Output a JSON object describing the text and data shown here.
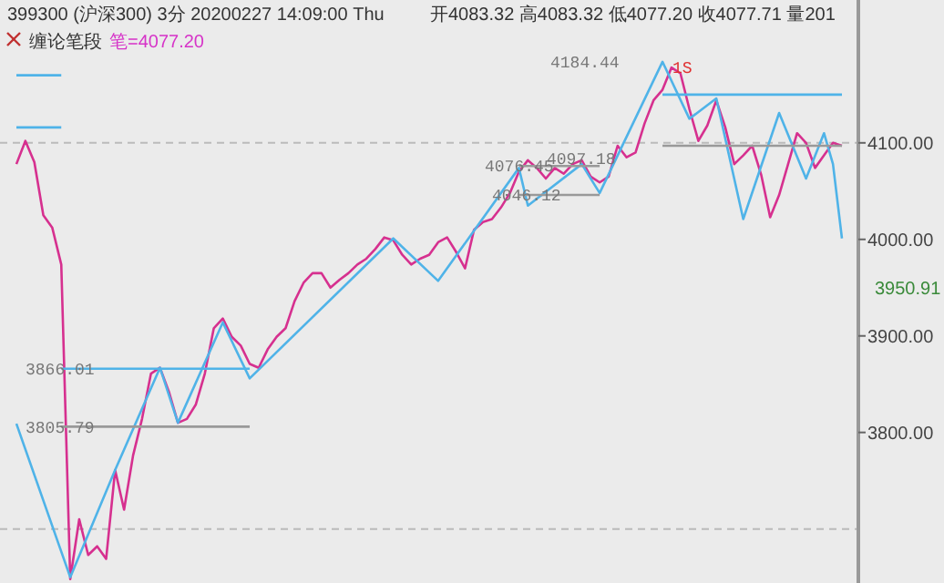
{
  "chart_data": {
    "type": "line",
    "title": "399300 (沪深300) 3分 20200227 14:09:00 Thu",
    "subtitle": "开4083.32 高4083.32 低4077.20 收4077.71 量201",
    "categories": [
      null,
      null,
      null,
      null,
      null,
      null,
      null,
      null,
      null,
      null,
      null,
      null,
      null,
      null,
      null,
      null,
      null,
      null,
      null,
      null,
      null,
      null,
      null,
      null,
      null,
      null,
      null,
      null,
      null,
      null,
      null,
      null,
      null,
      null,
      null,
      null,
      null,
      null,
      null,
      null,
      null,
      null,
      null,
      null,
      null,
      null,
      null,
      null,
      null,
      null,
      null,
      null,
      null,
      null,
      null,
      null,
      null,
      null,
      null,
      null,
      null,
      null,
      null,
      null,
      null,
      null,
      null,
      null,
      null,
      null,
      null,
      null,
      null,
      null,
      null,
      null,
      null,
      null,
      null,
      null,
      null,
      null,
      null,
      null,
      null,
      null,
      null,
      null,
      null,
      null,
      null,
      null,
      null
    ],
    "annotations": [
      "缠论笔段",
      "笔=4077.20",
      {
        "text": "3866.01",
        "y": 3866.01
      },
      {
        "text": "3805.79",
        "y": 3805.79
      },
      {
        "text": "4076.45",
        "y": 4076.45
      },
      {
        "text": "4046.12",
        "y": 4046.12
      },
      {
        "text": "4097.18",
        "y": 4097.18
      },
      "4184.44",
      {
        "text": "1S",
        "y": 4178
      },
      "3950.91"
    ],
    "ylim": [
      3644,
      4248
    ],
    "yticks": [
      {
        "value": 3800,
        "label": "3800.00"
      },
      {
        "value": 3900,
        "label": "3900.00"
      },
      {
        "value": 4000,
        "label": "4000.00"
      },
      {
        "value": 4100,
        "label": "4100.00"
      }
    ],
    "ref_lines": [
      {
        "axis": "y",
        "value": 4100,
        "color": "#bbbbbb",
        "line_style": "dashed"
      },
      {
        "axis": "y",
        "value": 3700,
        "color": "#bbbbbb",
        "line_style": "dashed"
      }
    ],
    "series": [
      {
        "color": "#d6308f",
        "values": [
          4078,
          4102,
          4080,
          4025,
          4012,
          3974,
          3648,
          3710,
          3673,
          3682,
          3669,
          3761,
          3720,
          3776,
          3814,
          3861,
          3867,
          3842,
          3810,
          3814,
          3829,
          3861,
          3908,
          3918,
          3899,
          3890,
          3871,
          3867,
          3886,
          3899,
          3908,
          3936,
          3955,
          3965,
          3965,
          3950,
          3958,
          3965,
          3974,
          3980,
          3990,
          4002,
          3999,
          3984,
          3974,
          3980,
          3984,
          3997,
          4002,
          3987,
          3970,
          4010,
          4018,
          4021,
          4033,
          4048,
          4070,
          4082,
          4074,
          4063,
          4074,
          4068,
          4078,
          4082,
          4065,
          4059,
          4065,
          4097,
          4085,
          4090,
          4120,
          4144,
          4155,
          4178,
          4172,
          4135,
          4102,
          4118,
          4144,
          4116,
          4078,
          4087,
          4097,
          4067,
          4023,
          4046,
          4078,
          4110,
          4100,
          4074,
          4087,
          4100,
          4097
        ]
      },
      {
        "color": "#4fb3e8",
        "values": [
          3809,
          null,
          null,
          null,
          null,
          null,
          3650,
          null,
          null,
          null,
          null,
          3761,
          null,
          null,
          null,
          null,
          3867,
          null,
          3810,
          null,
          null,
          null,
          null,
          3914,
          null,
          null,
          3856,
          null,
          null,
          null,
          null,
          null,
          null,
          null,
          null,
          null,
          null,
          null,
          null,
          null,
          null,
          null,
          4001,
          null,
          null,
          null,
          null,
          3957,
          null,
          null,
          null,
          null,
          null,
          null,
          null,
          null,
          4074,
          4035,
          null,
          null,
          null,
          null,
          null,
          4078,
          null,
          4048,
          null,
          null,
          null,
          null,
          null,
          null,
          4184,
          null,
          null,
          4125,
          null,
          null,
          4146,
          null,
          null,
          4021,
          null,
          null,
          null,
          4131,
          null,
          null,
          4063,
          null,
          4110,
          4078,
          4001
        ]
      },
      {
        "color": "#4fb3e8",
        "values": [
          4170,
          4170,
          4170,
          4170,
          4170,
          4170,
          null,
          null,
          null,
          null,
          null,
          null,
          null,
          null,
          null,
          null,
          null,
          null,
          null,
          null,
          null,
          null,
          null,
          null,
          null,
          null,
          null,
          null,
          null,
          null,
          null,
          null,
          null,
          null,
          null,
          null,
          null,
          null,
          null,
          null,
          null,
          null,
          null,
          null,
          null,
          null,
          null,
          null,
          null,
          null,
          null,
          null,
          null,
          null,
          null,
          null,
          null,
          null,
          null,
          null,
          null,
          null,
          null,
          null,
          null,
          null,
          null,
          null,
          null,
          null,
          null,
          null,
          null,
          null,
          null,
          null,
          null,
          null,
          null,
          null,
          null,
          null,
          null,
          null,
          null,
          null,
          null,
          null,
          null,
          null,
          null,
          null,
          null
        ]
      },
      {
        "color": "#4fb3e8",
        "values": [
          4116,
          4116,
          4116,
          4116,
          4116,
          4116,
          null,
          null,
          null,
          null,
          null,
          null,
          null,
          null,
          null,
          null,
          null,
          null,
          null,
          null,
          null,
          null,
          null,
          null,
          null,
          null,
          null,
          null,
          null,
          null,
          null,
          null,
          null,
          null,
          null,
          null,
          null,
          null,
          null,
          null,
          null,
          null,
          null,
          null,
          null,
          null,
          null,
          null,
          null,
          null,
          null,
          null,
          null,
          null,
          null,
          null,
          null,
          null,
          null,
          null,
          null,
          null,
          null,
          null,
          null,
          null,
          null,
          null,
          null,
          null,
          null,
          null,
          null,
          null,
          null,
          null,
          null,
          null,
          null,
          null,
          null,
          null,
          null,
          null,
          null,
          null,
          null,
          null,
          null,
          null,
          null,
          null,
          null
        ]
      },
      {
        "color": "#4fb3e8",
        "values": [
          null,
          null,
          null,
          null,
          null,
          3866,
          3866,
          3866,
          3866,
          3866,
          3866,
          3866,
          3866,
          3866,
          3866,
          3866,
          3866,
          3866,
          3866,
          3866,
          3866,
          3866,
          3866,
          3866,
          3866,
          3866,
          3866,
          null,
          null,
          null,
          null,
          null,
          null,
          null,
          null,
          null,
          null,
          null,
          null,
          null,
          null,
          null,
          null,
          null,
          null,
          null,
          null,
          null,
          null,
          null,
          null,
          null,
          null,
          null,
          null,
          null,
          null,
          null,
          null,
          null,
          null,
          null,
          null,
          null,
          null,
          null,
          null,
          null,
          null,
          null,
          null,
          null,
          null,
          null,
          null,
          null,
          null,
          null,
          null,
          null,
          null,
          null,
          null,
          null,
          null,
          null,
          null,
          null,
          null,
          null,
          null,
          null,
          null
        ]
      },
      {
        "color": "#999999",
        "values": [
          null,
          null,
          null,
          null,
          null,
          3806,
          3806,
          3806,
          3806,
          3806,
          3806,
          3806,
          3806,
          3806,
          3806,
          3806,
          3806,
          3806,
          3806,
          3806,
          3806,
          3806,
          3806,
          3806,
          3806,
          3806,
          3806,
          null,
          null,
          null,
          null,
          null,
          null,
          null,
          null,
          null,
          null,
          null,
          null,
          null,
          null,
          null,
          null,
          null,
          null,
          null,
          null,
          null,
          null,
          null,
          null,
          null,
          null,
          null,
          null,
          null,
          null,
          null,
          null,
          null,
          null,
          null,
          null,
          null,
          null,
          null,
          null,
          null,
          null,
          null,
          null,
          null,
          null,
          null,
          null,
          null,
          null,
          null,
          null,
          null,
          null,
          null,
          null,
          null,
          null,
          null,
          null,
          null,
          null,
          null,
          null,
          null,
          null
        ]
      },
      {
        "color": "#999999",
        "values": [
          null,
          null,
          null,
          null,
          null,
          null,
          null,
          null,
          null,
          null,
          null,
          null,
          null,
          null,
          null,
          null,
          null,
          null,
          null,
          null,
          null,
          null,
          null,
          null,
          null,
          null,
          null,
          null,
          null,
          null,
          null,
          null,
          null,
          null,
          null,
          null,
          null,
          null,
          null,
          null,
          null,
          null,
          null,
          null,
          null,
          null,
          null,
          null,
          null,
          null,
          null,
          null,
          null,
          null,
          null,
          null,
          4076,
          4076,
          4076,
          4076,
          4076,
          4076,
          4076,
          4076,
          4076,
          4076,
          null,
          null,
          null,
          null,
          null,
          null,
          null,
          null,
          null,
          null,
          null,
          null,
          null,
          null,
          null,
          null,
          null,
          null,
          null,
          null,
          null,
          null,
          null,
          null,
          null,
          null,
          null
        ]
      },
      {
        "color": "#999999",
        "values": [
          null,
          null,
          null,
          null,
          null,
          null,
          null,
          null,
          null,
          null,
          null,
          null,
          null,
          null,
          null,
          null,
          null,
          null,
          null,
          null,
          null,
          null,
          null,
          null,
          null,
          null,
          null,
          null,
          null,
          null,
          null,
          null,
          null,
          null,
          null,
          null,
          null,
          null,
          null,
          null,
          null,
          null,
          null,
          null,
          null,
          null,
          null,
          null,
          null,
          null,
          null,
          null,
          null,
          null,
          null,
          null,
          4046,
          4046,
          4046,
          4046,
          4046,
          4046,
          4046,
          4046,
          4046,
          4046,
          null,
          null,
          null,
          null,
          null,
          null,
          null,
          null,
          null,
          null,
          null,
          null,
          null,
          null,
          null,
          null,
          null,
          null,
          null,
          null,
          null,
          null,
          null,
          null,
          null,
          null,
          null
        ]
      },
      {
        "color": "#4fb3e8",
        "values": [
          null,
          null,
          null,
          null,
          null,
          null,
          null,
          null,
          null,
          null,
          null,
          null,
          null,
          null,
          null,
          null,
          null,
          null,
          null,
          null,
          null,
          null,
          null,
          null,
          null,
          null,
          null,
          null,
          null,
          null,
          null,
          null,
          null,
          null,
          null,
          null,
          null,
          null,
          null,
          null,
          null,
          null,
          null,
          null,
          null,
          null,
          null,
          null,
          null,
          null,
          null,
          null,
          null,
          null,
          null,
          null,
          null,
          null,
          null,
          null,
          null,
          null,
          null,
          null,
          null,
          null,
          null,
          null,
          null,
          null,
          null,
          null,
          4150,
          4150,
          4150,
          4150,
          4150,
          4150,
          4150,
          4150,
          4150,
          4150,
          4150,
          4150,
          4150,
          4150,
          4150,
          4150,
          4150,
          4150,
          4150,
          4150,
          4150
        ]
      },
      {
        "color": "#999999",
        "values": [
          null,
          null,
          null,
          null,
          null,
          null,
          null,
          null,
          null,
          null,
          null,
          null,
          null,
          null,
          null,
          null,
          null,
          null,
          null,
          null,
          null,
          null,
          null,
          null,
          null,
          null,
          null,
          null,
          null,
          null,
          null,
          null,
          null,
          null,
          null,
          null,
          null,
          null,
          null,
          null,
          null,
          null,
          null,
          null,
          null,
          null,
          null,
          null,
          null,
          null,
          null,
          null,
          null,
          null,
          null,
          null,
          null,
          null,
          null,
          null,
          null,
          null,
          null,
          null,
          null,
          null,
          null,
          null,
          null,
          null,
          null,
          null,
          4097,
          4097,
          4097,
          4097,
          4097,
          4097,
          4097,
          4097,
          4097,
          4097,
          4097,
          4097,
          4097,
          4097,
          4097,
          4097,
          4097,
          4097,
          4097,
          4097,
          4097
        ]
      }
    ]
  }
}
